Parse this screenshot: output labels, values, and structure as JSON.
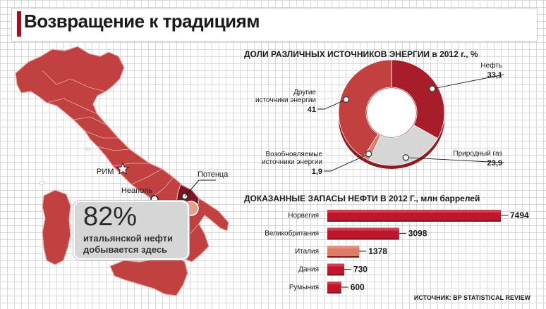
{
  "title": "Возвращение к традициям",
  "map": {
    "cities": [
      "РИМ",
      "Неаполь",
      "Потенца"
    ],
    "callout_value": "82%",
    "callout_line1": "итальянской нефти",
    "callout_line2": "добывается здесь",
    "colors": {
      "italy": "#c0413f",
      "basilicata": "#7a1520",
      "border": "#e8b0ad"
    }
  },
  "source": "ИСТОЧНИК: BP STATISTICAL REVIEW",
  "chart_data": [
    {
      "type": "pie",
      "title": "ДОЛИ РАЗЛИЧНЫХ ИСТОЧНИКОВ ЭНЕРГИИ в 2012 г., %",
      "slices": [
        {
          "label": "Нефть",
          "value": 33.1,
          "display": "33,1",
          "color": "#a71d2a"
        },
        {
          "label": "Природный газ",
          "value": 23.9,
          "display": "23,9",
          "color": "#d6d6d6"
        },
        {
          "label": "Возобновляемые источники энергии",
          "label_lines": [
            "Возобновляемые",
            "источники энергии"
          ],
          "value": 1.9,
          "display": "1,9",
          "color": "#e07b6a"
        },
        {
          "label": "Другие источники энергии",
          "label_lines": [
            "Другие",
            "источники энергии"
          ],
          "value": 41,
          "display": "41",
          "color": "#c2403d"
        }
      ]
    },
    {
      "type": "bar",
      "title": "ДОКАЗАННЫЕ ЗАПАСЫ НЕФТИ В 2012 Г., млн баррелей",
      "categories": [
        "Норвегия",
        "Великобритания",
        "Италия",
        "Дания",
        "Румыния"
      ],
      "values": [
        7494,
        3098,
        1378,
        730,
        600
      ],
      "colors": [
        "#c0152b",
        "#c0152b",
        "#e07b6a",
        "#c0152b",
        "#c0152b"
      ]
    }
  ]
}
